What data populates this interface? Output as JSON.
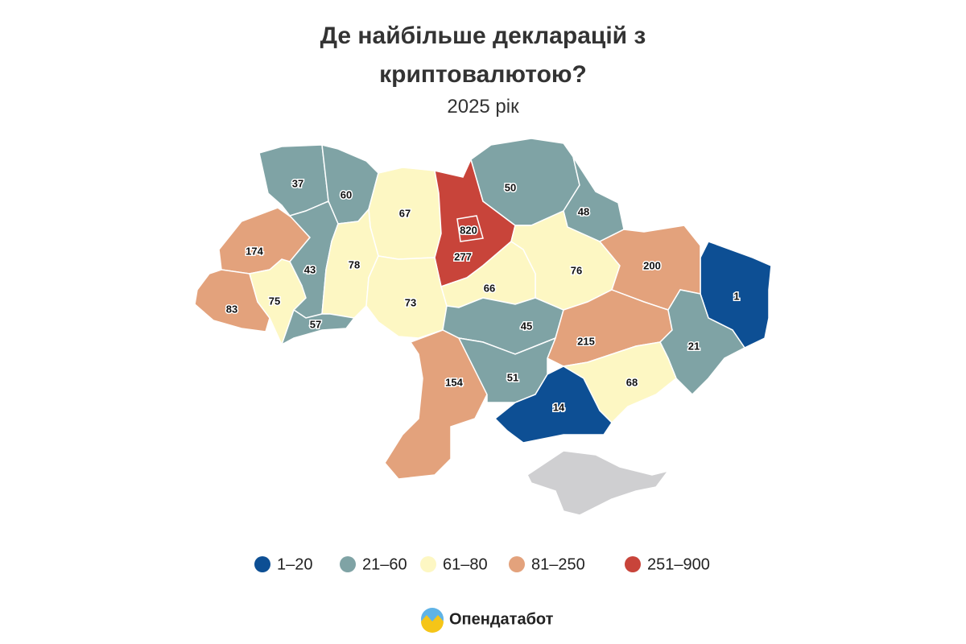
{
  "title": "Де найбільше декларацій з криптовалютою?",
  "subtitle": "2025 рік",
  "regions": [
    {
      "value": 37,
      "color": "#7fa3a5"
    },
    {
      "value": 60,
      "color": "#7fa3a5"
    },
    {
      "value": 67,
      "color": "#fdf7c3"
    },
    {
      "value": 820,
      "color": "#c8443a"
    },
    {
      "value": 277,
      "color": "#c8443a"
    },
    {
      "value": 50,
      "color": "#7fa3a5"
    },
    {
      "value": 48,
      "color": "#7fa3a5"
    },
    {
      "value": 174,
      "color": "#e3a27c"
    },
    {
      "value": 43,
      "color": "#7fa3a5"
    },
    {
      "value": 78,
      "color": "#fdf7c3"
    },
    {
      "value": 76,
      "color": "#fdf7c3"
    },
    {
      "value": 1,
      "color": "#0d4f94"
    },
    {
      "value": 200,
      "color": "#e3a27c"
    },
    {
      "value": 83,
      "color": "#e3a27c"
    },
    {
      "value": 75,
      "color": "#fdf7c3"
    },
    {
      "value": 57,
      "color": "#7fa3a5"
    },
    {
      "value": 73,
      "color": "#fdf7c3"
    },
    {
      "value": 66,
      "color": "#fdf7c3"
    },
    {
      "value": 45,
      "color": "#7fa3a5"
    },
    {
      "value": 215,
      "color": "#e3a27c"
    },
    {
      "value": 21,
      "color": "#7fa3a5"
    },
    {
      "value": 154,
      "color": "#e3a27c"
    },
    {
      "value": 51,
      "color": "#7fa3a5"
    },
    {
      "value": 68,
      "color": "#fdf7c3"
    },
    {
      "value": 14,
      "color": "#0d4f94"
    }
  ],
  "legend": [
    {
      "label": "1–20",
      "color": "#0d4f94"
    },
    {
      "label": "21–60",
      "color": "#7fa3a5"
    },
    {
      "label": "61–80",
      "color": "#fdf7c3"
    },
    {
      "label": "81–250",
      "color": "#e3a27c"
    },
    {
      "label": "251–900",
      "color": "#c8443a"
    }
  ],
  "brand": "Опендатабот"
}
